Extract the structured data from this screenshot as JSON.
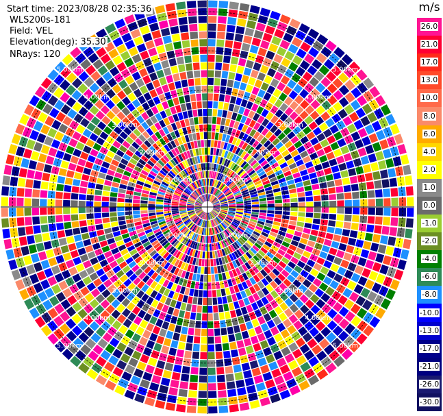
{
  "header": {
    "start_time": "Start time: 2023/08/28 02:35:36",
    "instrument": "WLS200s-181",
    "field": "Field: VEL",
    "elevation": "Elevation(deg): 35.30",
    "nrays": "NRays: 120"
  },
  "ppi": {
    "ring_label": "5.00km",
    "ring_labels_inner": [
      "1.00km",
      "2.00km",
      "3.00km",
      "4.00km"
    ],
    "n_rays": 120
  },
  "colorbar": {
    "unit": "m/s",
    "levels": [
      {
        "label": "26.0",
        "color": "#ff1493"
      },
      {
        "label": "21.0",
        "color": "#ff0033"
      },
      {
        "label": "17.0",
        "color": "#ff2a1a"
      },
      {
        "label": "13.0",
        "color": "#ff4a2a"
      },
      {
        "label": "10.0",
        "color": "#ff6a4a"
      },
      {
        "label": "8.0",
        "color": "#fa8a6a"
      },
      {
        "label": "6.0",
        "color": "#ffaa00"
      },
      {
        "label": "4.0",
        "color": "#ffd700"
      },
      {
        "label": "2.0",
        "color": "#ffff00"
      },
      {
        "label": "1.0",
        "color": "#8a8a8a"
      },
      {
        "label": "0.0",
        "color": "#6b6b6b"
      },
      {
        "label": "-1.0",
        "color": "#9acd32"
      },
      {
        "label": "-2.0",
        "color": "#6b8e23"
      },
      {
        "label": "-4.0",
        "color": "#008000"
      },
      {
        "label": "-6.0",
        "color": "#2e8b57"
      },
      {
        "label": "-8.0",
        "color": "#1e90ff"
      },
      {
        "label": "-10.0",
        "color": "#0000ff"
      },
      {
        "label": "-13.0",
        "color": "#0000cd"
      },
      {
        "label": "-17.0",
        "color": "#00008b"
      },
      {
        "label": "-21.0",
        "color": "#000080"
      },
      {
        "label": "-26.0",
        "color": "#191970"
      },
      {
        "label": "-30.0",
        "color": "#101060"
      }
    ]
  }
}
